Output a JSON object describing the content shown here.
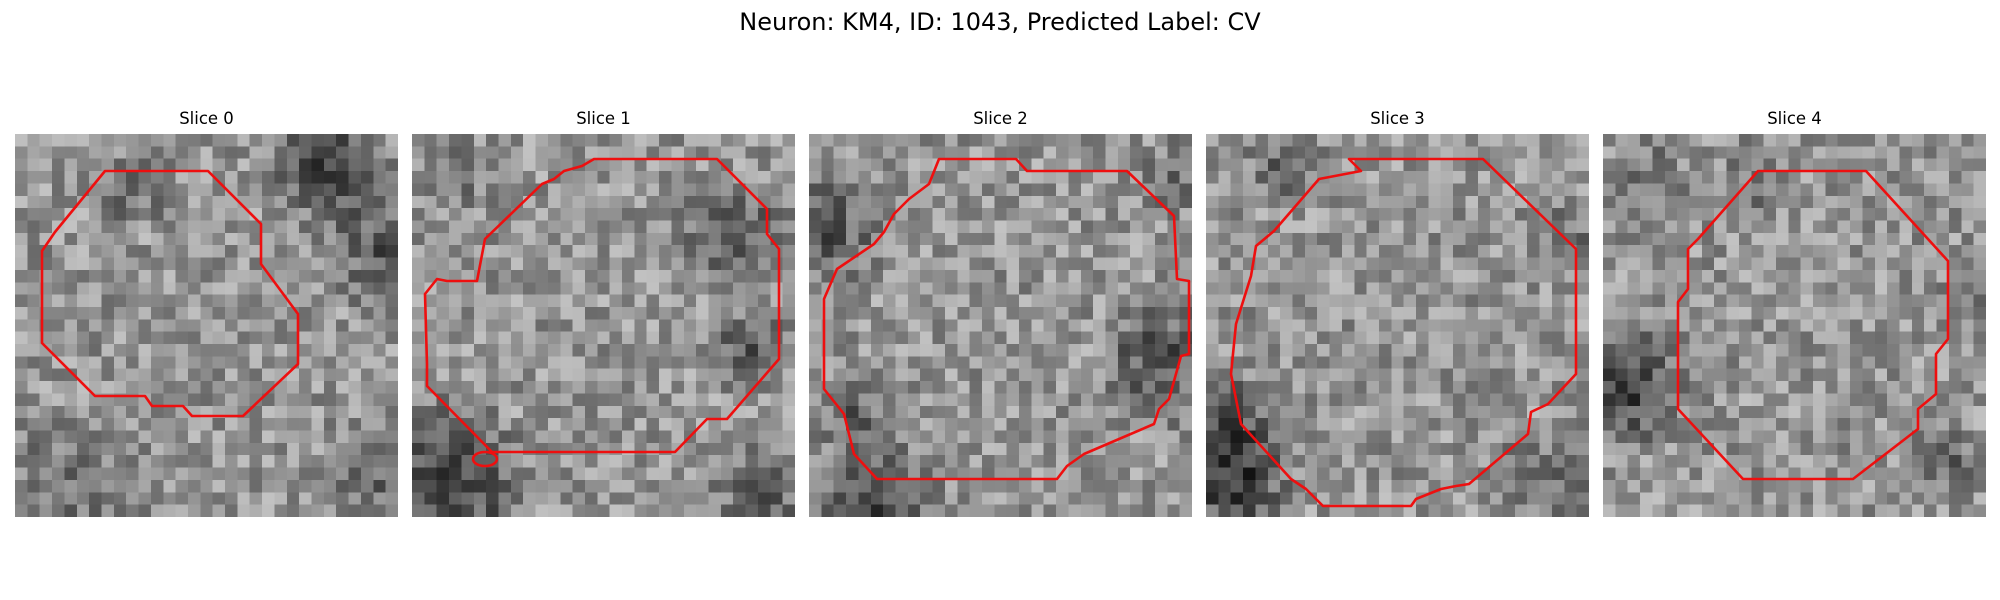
{
  "figure": {
    "title": "Neuron: KM4, ID: 1043, Predicted Label: CV"
  },
  "colors": {
    "contour": "#ee0f0f",
    "background": "#ffffff"
  },
  "panels": [
    {
      "title": "Slice 0"
    },
    {
      "title": "Slice 1"
    },
    {
      "title": "Slice 2"
    },
    {
      "title": "Slice 3"
    },
    {
      "title": "Slice 4"
    }
  ]
}
